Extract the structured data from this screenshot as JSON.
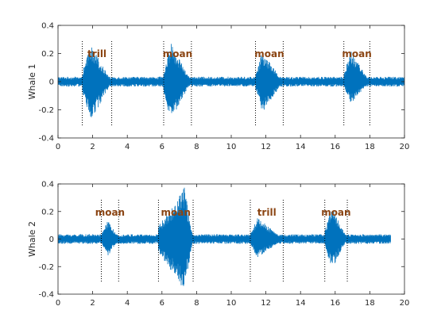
{
  "figure": {
    "background": "#ffffff",
    "signal_color": "#0072BD",
    "marker_color": "#000000",
    "annotation_color": "#8B4513",
    "axis_color": "#262626"
  },
  "chart_data": [
    {
      "type": "line",
      "ylabel": "Whale 1",
      "xlabel": "",
      "xlim": [
        0,
        20
      ],
      "ylim": [
        -0.4,
        0.4
      ],
      "xticks": [
        0,
        2,
        4,
        6,
        8,
        10,
        12,
        14,
        16,
        18,
        20
      ],
      "xtick_labels": [
        "0",
        "2",
        "4",
        "6",
        "8",
        "10",
        "12",
        "14",
        "16",
        "18",
        "20"
      ],
      "yticks": [
        -0.4,
        -0.2,
        0,
        0.2,
        0.4
      ],
      "ytick_labels": [
        "-0.4",
        "-0.2",
        "0",
        "0.2",
        "0.4"
      ],
      "signal_end": 20,
      "noise_amplitude": 0.035,
      "calls": [
        {
          "label": "trill",
          "start": 1.4,
          "end": 3.1,
          "amp_pos": 0.26,
          "amp_neg": 0.28,
          "peak": 1.9
        },
        {
          "label": "moan",
          "start": 6.1,
          "end": 7.7,
          "amp_pos": 0.28,
          "amp_neg": 0.29,
          "peak": 6.5
        },
        {
          "label": "moan",
          "start": 11.4,
          "end": 13.0,
          "amp_pos": 0.22,
          "amp_neg": 0.22,
          "peak": 11.8
        },
        {
          "label": "moan",
          "start": 16.5,
          "end": 18.0,
          "amp_pos": 0.22,
          "amp_neg": 0.16,
          "peak": 16.9
        }
      ]
    },
    {
      "type": "line",
      "ylabel": "Whale 2",
      "xlabel": "",
      "xlim": [
        0,
        20
      ],
      "ylim": [
        -0.4,
        0.4
      ],
      "xticks": [
        0,
        2,
        4,
        6,
        8,
        10,
        12,
        14,
        16,
        18,
        20
      ],
      "xtick_labels": [
        "0",
        "2",
        "4",
        "6",
        "8",
        "10",
        "12",
        "14",
        "16",
        "18",
        "20"
      ],
      "yticks": [
        -0.4,
        -0.2,
        0,
        0.2,
        0.4
      ],
      "ytick_labels": [
        "-0.4",
        "-0.2",
        "0",
        "0.2",
        "0.4"
      ],
      "signal_end": 19.2,
      "noise_amplitude": 0.035,
      "calls": [
        {
          "label": "moan",
          "start": 2.5,
          "end": 3.5,
          "amp_pos": 0.14,
          "amp_neg": 0.12,
          "peak": 2.9
        },
        {
          "label": "moan",
          "start": 5.8,
          "end": 7.8,
          "amp_pos": 0.38,
          "amp_neg": 0.38,
          "peak": 7.3
        },
        {
          "label": "trill",
          "start": 11.1,
          "end": 13.0,
          "amp_pos": 0.16,
          "amp_neg": 0.14,
          "peak": 11.5
        },
        {
          "label": "moan",
          "start": 15.4,
          "end": 16.7,
          "amp_pos": 0.24,
          "amp_neg": 0.22,
          "peak": 15.8
        }
      ]
    }
  ]
}
